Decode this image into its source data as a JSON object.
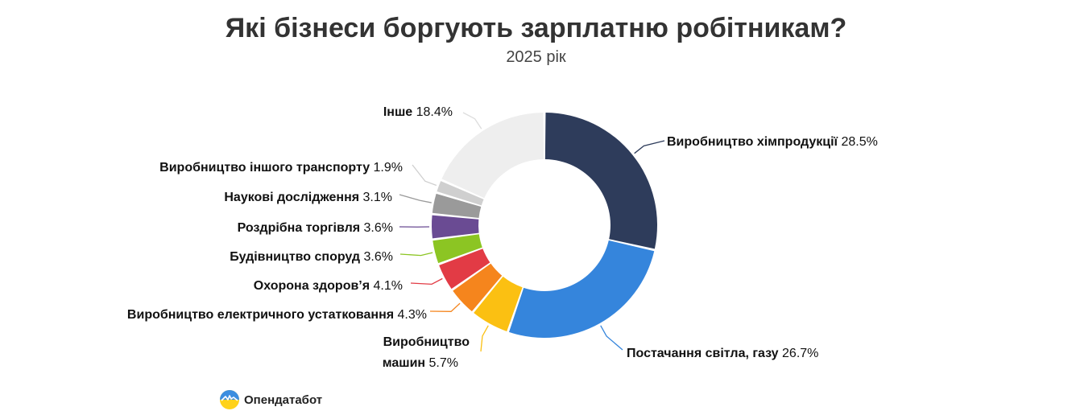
{
  "header": {
    "title": "Які бізнеси боргують зарплатню робітникам?",
    "subtitle": "2025 рік"
  },
  "branding": {
    "logo_text": "Опендатабот"
  },
  "chart_data": {
    "type": "pie",
    "donut": true,
    "title": "Які бізнеси боргують зарплатню робітникам?",
    "subtitle": "2025 рік",
    "unit": "%",
    "series": [
      {
        "values": [
          {
            "label": "Виробництво хімпродукції",
            "value": 28.5,
            "color": "#2e3c5b"
          },
          {
            "label": "Постачання світла, газу",
            "value": 26.7,
            "color": "#3585dc"
          },
          {
            "label": "Виробництво машин",
            "value": 5.7,
            "color": "#fbc012"
          },
          {
            "label": "Виробництво електричного устатковання",
            "value": 4.3,
            "color": "#f5851d"
          },
          {
            "label": "Охорона здоров’я",
            "value": 4.1,
            "color": "#e23b45"
          },
          {
            "label": "Будівництво споруд",
            "value": 3.6,
            "color": "#8cc523"
          },
          {
            "label": "Роздрібна торгівля",
            "value": 3.6,
            "color": "#6a4b93"
          },
          {
            "label": "Наукові дослідження",
            "value": 3.1,
            "color": "#9a9a9a"
          },
          {
            "label": "Виробництво іншого транспорту",
            "value": 1.9,
            "color": "#cfcfcf"
          },
          {
            "label": "Інше",
            "value": 18.4,
            "color": "#eeeeee"
          }
        ]
      }
    ]
  }
}
